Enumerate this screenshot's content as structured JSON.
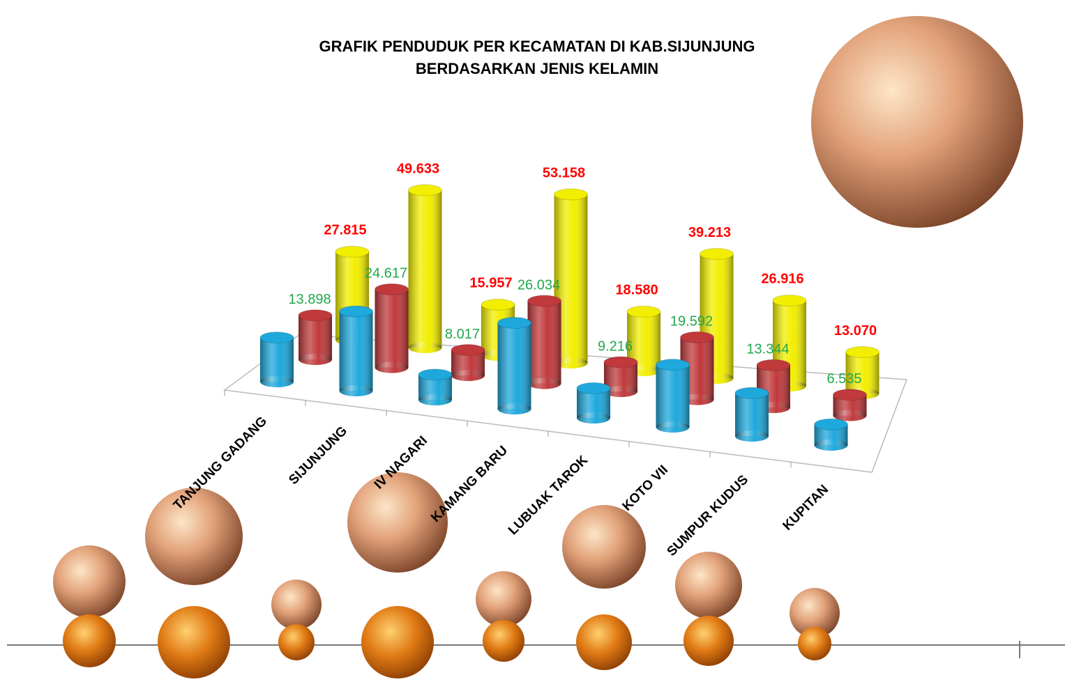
{
  "chart_data": {
    "type": "bar",
    "title": "GRAFIK PENDUDUK PER KECAMATAN  DI KAB.SIJUNJUNG",
    "subtitle": "BERDASARKAN JENIS KELAMIN",
    "categories": [
      "TANJUNG GADANG",
      "SIJUNJUNG",
      "IV NAGARI",
      "KAMANG BARU",
      "LUBUAK TAROK",
      "KOTO VII",
      "SUMPUR KUDUS",
      "KUPITAN"
    ],
    "series": [
      {
        "color": "#1ea8dc",
        "values": [
          13917,
          25016,
          7940,
          27124,
          9364,
          19621,
          13572,
          6535
        ]
      },
      {
        "color": "#c0393b",
        "values": [
          13898,
          24617,
          8017,
          26034,
          9216,
          19592,
          13344,
          6535
        ],
        "value_labels": [
          "13.898",
          "24.617",
          "8.017",
          "26.034",
          "9.216",
          "19.592",
          "13.344",
          "6.535"
        ],
        "label_color": "#21a84a"
      },
      {
        "color": "#f2ee00",
        "values": [
          27815,
          49633,
          15957,
          53158,
          18580,
          39213,
          26916,
          13070
        ],
        "value_labels": [
          "27.815",
          "49.633",
          "15.957",
          "53.158",
          "18.580",
          "39.213",
          "26.916",
          "13.070"
        ],
        "label_color": "#ff0000"
      }
    ]
  }
}
